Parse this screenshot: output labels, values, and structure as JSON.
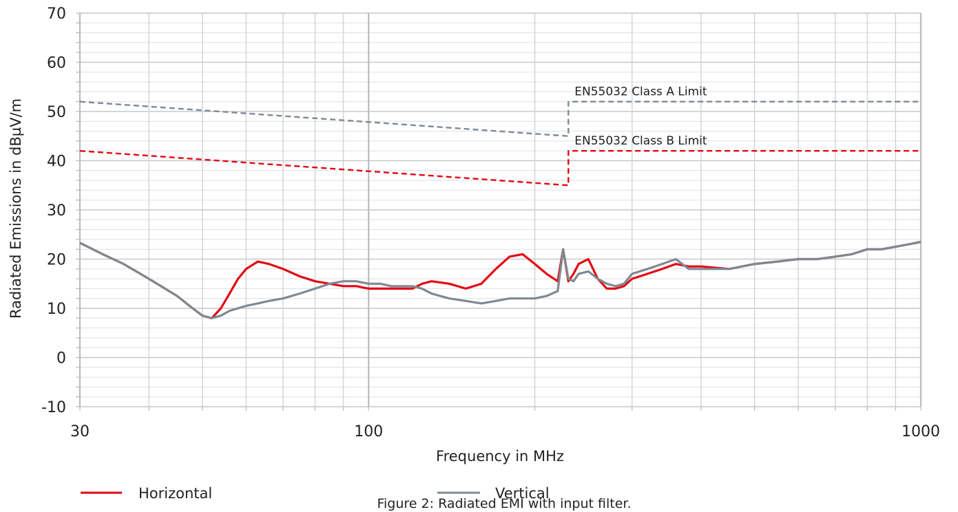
{
  "chart_data": {
    "type": "line",
    "title": "",
    "caption": "Figure 2: Radiated EMI with input filter.",
    "xlabel": "Frequency in MHz",
    "ylabel": "Radiated Emissions in dBµV/m",
    "x_scale": "log",
    "xlim": [
      30,
      1000
    ],
    "ylim": [
      -10,
      70
    ],
    "x_ticks": [
      30,
      100,
      1000
    ],
    "x_tick_labels": [
      "30",
      "100",
      "1000"
    ],
    "y_ticks": [
      -10,
      0,
      10,
      20,
      30,
      40,
      50,
      60,
      70
    ],
    "y_tick_labels": [
      "-10",
      "0",
      "10",
      "20",
      "30",
      "40",
      "50",
      "60",
      "70"
    ],
    "grid": true,
    "legend_position": "bottom-left",
    "series": [
      {
        "name": "Horizontal",
        "color": "#e30613",
        "style": "solid",
        "x": [
          30,
          33,
          36,
          40,
          45,
          48,
          50,
          52,
          54,
          56,
          58,
          60,
          63,
          66,
          70,
          75,
          80,
          85,
          90,
          95,
          100,
          105,
          110,
          115,
          120,
          125,
          130,
          140,
          150,
          160,
          170,
          180,
          190,
          200,
          210,
          220,
          225,
          230,
          235,
          240,
          250,
          260,
          270,
          280,
          290,
          300,
          320,
          340,
          360,
          380,
          400,
          450,
          500,
          550,
          600,
          650,
          700,
          750,
          800,
          850,
          900,
          950,
          1000
        ],
        "y": [
          23.3,
          21,
          19,
          16,
          12.5,
          10,
          8.5,
          8,
          10,
          13,
          16,
          18,
          19.5,
          19,
          18,
          16.5,
          15.5,
          15,
          14.5,
          14.5,
          14,
          14,
          14,
          14,
          14,
          15,
          15.5,
          15,
          14,
          15,
          18,
          20.5,
          21,
          19,
          17,
          15.5,
          22,
          15.5,
          17,
          19,
          20,
          16,
          14,
          14,
          14.5,
          16,
          17,
          18,
          19,
          18.5,
          18.5,
          18,
          19,
          19.5,
          20,
          20,
          20.5,
          21,
          22,
          22,
          22.5,
          23,
          23.5
        ]
      },
      {
        "name": "Vertical",
        "color": "#808890",
        "style": "solid",
        "x": [
          30,
          33,
          36,
          40,
          45,
          48,
          50,
          52,
          54,
          56,
          58,
          60,
          63,
          66,
          70,
          75,
          80,
          85,
          90,
          95,
          100,
          105,
          110,
          115,
          120,
          125,
          130,
          140,
          150,
          160,
          170,
          180,
          190,
          200,
          210,
          220,
          225,
          230,
          235,
          240,
          250,
          260,
          270,
          280,
          290,
          300,
          320,
          340,
          360,
          380,
          400,
          450,
          500,
          550,
          600,
          650,
          700,
          750,
          800,
          850,
          900,
          950,
          1000
        ],
        "y": [
          23.3,
          21,
          19,
          16,
          12.5,
          10,
          8.5,
          8,
          8.5,
          9.5,
          10,
          10.5,
          11,
          11.5,
          12,
          13,
          14,
          15,
          15.5,
          15.5,
          15,
          15,
          14.5,
          14.5,
          14.5,
          14,
          13,
          12,
          11.5,
          11,
          11.5,
          12,
          12,
          12,
          12.5,
          13.5,
          22,
          16,
          15.5,
          17,
          17.5,
          16,
          15,
          14.5,
          15,
          17,
          18,
          19,
          20,
          18,
          18,
          18,
          19,
          19.5,
          20,
          20,
          20.5,
          21,
          22,
          22,
          22.5,
          23,
          23.5
        ]
      },
      {
        "name": "EN55032 Class A Limit",
        "color": "#808890",
        "style": "dashed",
        "x": [
          30,
          230,
          230,
          1000
        ],
        "y": [
          52,
          45,
          52,
          52
        ]
      },
      {
        "name": "EN55032 Class B Limit",
        "color": "#e30613",
        "style": "dashed",
        "x": [
          30,
          230,
          230,
          1000
        ],
        "y": [
          42,
          35,
          42,
          42
        ]
      }
    ],
    "annotations": [
      {
        "text": "EN55032 Class A Limit",
        "x": 230,
        "y": 52
      },
      {
        "text": "EN55032 Class B Limit",
        "x": 230,
        "y": 42
      }
    ],
    "legend": [
      {
        "label": "Horizontal",
        "color": "#e30613"
      },
      {
        "label": "Vertical",
        "color": "#808890"
      }
    ]
  }
}
